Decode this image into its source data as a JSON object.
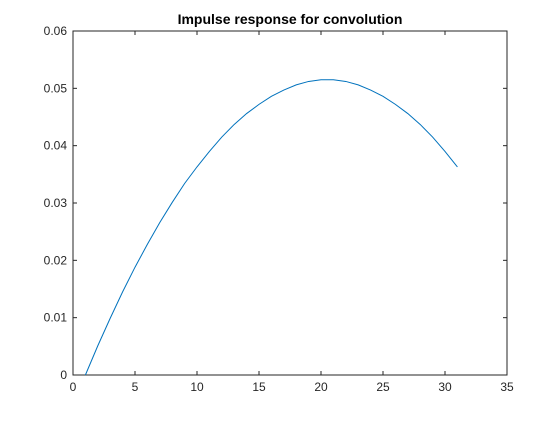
{
  "chart_data": {
    "type": "line",
    "title": "Impulse response for convolution",
    "xlabel": "",
    "ylabel": "",
    "xlim": [
      0,
      35
    ],
    "ylim": [
      0,
      0.06
    ],
    "xticks": [
      0,
      5,
      10,
      15,
      20,
      25,
      30,
      35
    ],
    "yticks": [
      0,
      0.01,
      0.02,
      0.03,
      0.04,
      0.05,
      0.06
    ],
    "xtick_labels": [
      "0",
      "5",
      "10",
      "15",
      "20",
      "25",
      "30",
      "35"
    ],
    "ytick_labels": [
      "0",
      "0.01",
      "0.02",
      "0.03",
      "0.04",
      "0.05",
      "0.06"
    ],
    "grid": false,
    "legend": "none",
    "series": [
      {
        "color": "#0072BD",
        "x": [
          1,
          2,
          3,
          4,
          5,
          6,
          7,
          8,
          9,
          10,
          11,
          12,
          13,
          14,
          15,
          16,
          17,
          18,
          19,
          20,
          21,
          22,
          23,
          24,
          25,
          26,
          27,
          28,
          29,
          30,
          31
        ],
        "y": [
          0.0,
          0.0051,
          0.0099,
          0.0145,
          0.0188,
          0.0228,
          0.0266,
          0.0301,
          0.0334,
          0.0363,
          0.039,
          0.0415,
          0.0437,
          0.0456,
          0.0472,
          0.0486,
          0.0497,
          0.0506,
          0.0512,
          0.0515,
          0.0515,
          0.0512,
          0.0506,
          0.0497,
          0.0486,
          0.0472,
          0.0456,
          0.0437,
          0.0415,
          0.039,
          0.0363
        ]
      }
    ]
  }
}
